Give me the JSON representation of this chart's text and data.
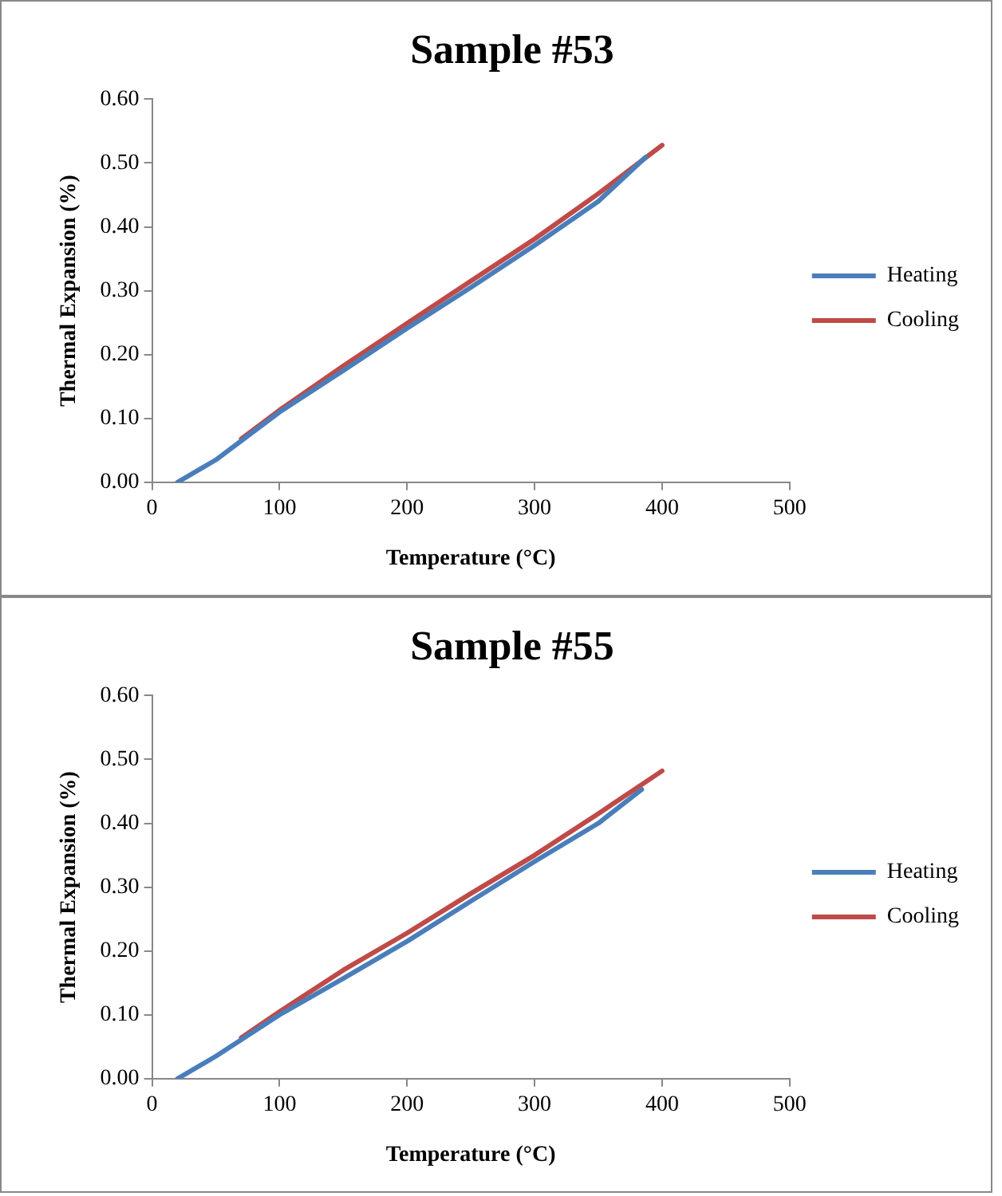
{
  "chart_data": [
    {
      "type": "line",
      "title": "Sample #53",
      "xlabel": "Temperature (°C)",
      "ylabel": "Thermal Expansion (%)",
      "xlim": [
        0,
        500
      ],
      "xticks": [
        0,
        100,
        200,
        300,
        400,
        500
      ],
      "ylim": [
        0,
        0.6
      ],
      "yticks": [
        {
          "value": 0,
          "label": "0.00"
        },
        {
          "value": 0.1,
          "label": "0.10"
        },
        {
          "value": 0.2,
          "label": "0.20"
        },
        {
          "value": 0.3,
          "label": "0.30"
        },
        {
          "value": 0.4,
          "label": "0.40"
        },
        {
          "value": 0.5,
          "label": "0.50"
        },
        {
          "value": 0.6,
          "label": "0.60"
        }
      ],
      "grid": false,
      "legend": "right",
      "marker": "none",
      "series": [
        {
          "name": "Heating",
          "color": "#4a7ebb",
          "x": [
            20,
            50,
            100,
            150,
            200,
            250,
            300,
            350,
            387
          ],
          "values": [
            0,
            0.035,
            0.11,
            0.175,
            0.241,
            0.305,
            0.371,
            0.44,
            0.509
          ]
        },
        {
          "name": "Cooling",
          "color": "#be4b48",
          "x": [
            70,
            100,
            150,
            200,
            250,
            300,
            350,
            400
          ],
          "values": [
            0.068,
            0.113,
            0.182,
            0.249,
            0.315,
            0.381,
            0.452,
            0.528
          ]
        }
      ]
    },
    {
      "type": "line",
      "title": "Sample #55",
      "xlabel": "Temperature (°C)",
      "ylabel": "Thermal Expansion (%)",
      "xlim": [
        0,
        500
      ],
      "xticks": [
        0,
        100,
        200,
        300,
        400,
        500
      ],
      "ylim": [
        0,
        0.6
      ],
      "yticks": [
        {
          "value": 0,
          "label": "0.00"
        },
        {
          "value": 0.1,
          "label": "0.10"
        },
        {
          "value": 0.2,
          "label": "0.20"
        },
        {
          "value": 0.3,
          "label": "0.30"
        },
        {
          "value": 0.4,
          "label": "0.40"
        },
        {
          "value": 0.5,
          "label": "0.50"
        },
        {
          "value": 0.6,
          "label": "0.60"
        }
      ],
      "grid": false,
      "legend": "right",
      "marker": "none",
      "series": [
        {
          "name": "Heating",
          "color": "#4a7ebb",
          "x": [
            20,
            50,
            100,
            150,
            200,
            250,
            300,
            350,
            384
          ],
          "values": [
            0,
            0.035,
            0.1,
            0.157,
            0.215,
            0.278,
            0.34,
            0.4,
            0.453
          ]
        },
        {
          "name": "Cooling",
          "color": "#be4b48",
          "x": [
            70,
            100,
            150,
            200,
            250,
            300,
            350,
            400
          ],
          "values": [
            0.064,
            0.105,
            0.17,
            0.228,
            0.29,
            0.35,
            0.415,
            0.482
          ]
        }
      ]
    }
  ]
}
